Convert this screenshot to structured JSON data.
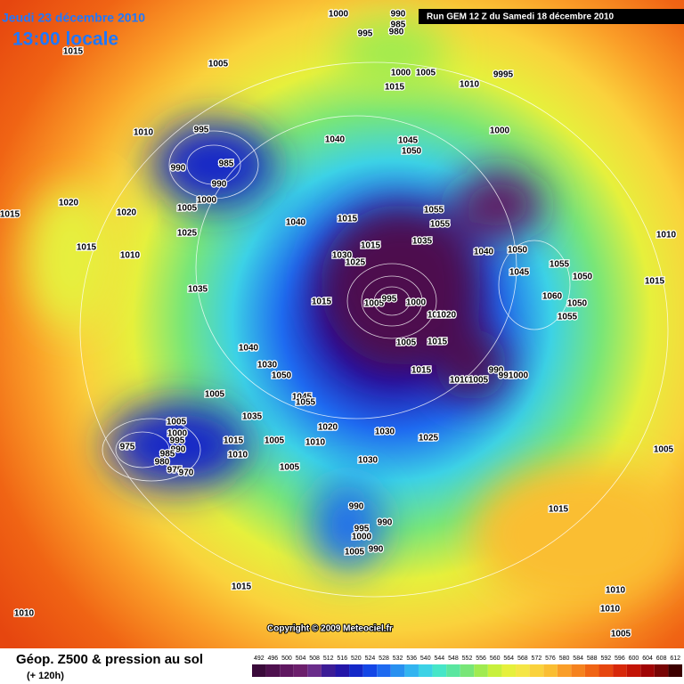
{
  "header": {
    "date": "Jeudi 23 décembre 2010",
    "time": "13:00 locale",
    "run": "Run GEM 12 Z du Samedi 18 décembre 2010"
  },
  "copyright": "Copyright © 2009 Meteociel.fr",
  "footer": {
    "title": "Géop. Z500 & pression au sol",
    "subtitle": "(+ 120h)"
  },
  "scale": {
    "labels": [
      492,
      496,
      500,
      504,
      508,
      512,
      516,
      520,
      524,
      528,
      532,
      536,
      540,
      544,
      548,
      552,
      556,
      560,
      564,
      568,
      572,
      576,
      580,
      584,
      588,
      592,
      596,
      600,
      604,
      608,
      612
    ],
    "colors": [
      "#3a0a3a",
      "#4e104e",
      "#5f1760",
      "#6c1f6c",
      "#6a2c8a",
      "#3c1c96",
      "#2416a8",
      "#1428c8",
      "#1446e6",
      "#1e6af0",
      "#2890f0",
      "#32b4f0",
      "#3cd2e6",
      "#46e6c8",
      "#5ae6a0",
      "#78e678",
      "#a0eb50",
      "#c8f03c",
      "#e6f03c",
      "#f5e646",
      "#fad23c",
      "#fabe32",
      "#fa9e28",
      "#f5821e",
      "#f06414",
      "#e6460f",
      "#d7280a",
      "#c31405",
      "#a00505",
      "#780505",
      "#3c0000"
    ]
  },
  "isobar_labels": [
    1000,
    990,
    985,
    980,
    995,
    1015,
    1005,
    1000,
    1005,
    9995,
    1010,
    1015,
    1010,
    995,
    1040,
    1045,
    1050,
    1000,
    985,
    990,
    990,
    1000,
    1005,
    1015,
    1020,
    1020,
    1025,
    1055,
    1055,
    1015,
    1040,
    1035,
    1015,
    1030,
    1025,
    1040,
    1050,
    1015,
    1010,
    1010,
    1035,
    1015,
    1005,
    995,
    1000,
    1045,
    1055,
    1050,
    1060,
    1050,
    1055,
    1015,
    1010,
    1020,
    1005,
    1015,
    1040,
    1030,
    1050,
    1015,
    990,
    995,
    1000,
    1010,
    1005,
    1005,
    1045,
    1055,
    1035,
    1020,
    1030,
    1025,
    1005,
    1000,
    995,
    990,
    975,
    985,
    980,
    975,
    970,
    1015,
    1005,
    1010,
    1010,
    1005,
    1030,
    990,
    990,
    995,
    1000,
    1005,
    990,
    1005,
    1015,
    1015,
    1010,
    1010,
    1010,
    1005
  ]
}
